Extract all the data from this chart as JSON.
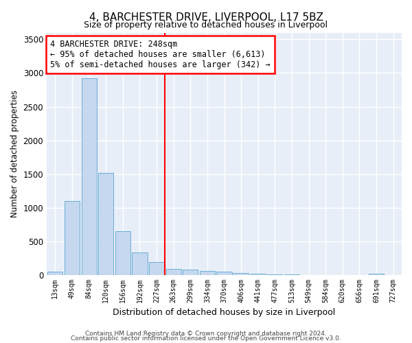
{
  "title": "4, BARCHESTER DRIVE, LIVERPOOL, L17 5BZ",
  "subtitle": "Size of property relative to detached houses in Liverpool",
  "xlabel": "Distribution of detached houses by size in Liverpool",
  "ylabel": "Number of detached properties",
  "footnote1": "Contains HM Land Registry data © Crown copyright and database right 2024.",
  "footnote2": "Contains public sector information licensed under the Open Government Licence v3.0.",
  "bar_labels": [
    "13sqm",
    "49sqm",
    "84sqm",
    "120sqm",
    "156sqm",
    "192sqm",
    "227sqm",
    "263sqm",
    "299sqm",
    "334sqm",
    "370sqm",
    "406sqm",
    "441sqm",
    "477sqm",
    "513sqm",
    "549sqm",
    "584sqm",
    "620sqm",
    "656sqm",
    "691sqm",
    "727sqm"
  ],
  "bar_values": [
    50,
    1100,
    2920,
    1520,
    650,
    340,
    190,
    95,
    85,
    60,
    50,
    30,
    20,
    10,
    8,
    5,
    5,
    5,
    3,
    20,
    3
  ],
  "bar_color": "#c5d8ef",
  "bar_edge_color": "#6baed6",
  "background_color": "#e8eef8",
  "grid_color": "#ffffff",
  "vline_color": "red",
  "annotation_line1": "4 BARCHESTER DRIVE: 248sqm",
  "annotation_line2": "← 95% of detached houses are smaller (6,613)",
  "annotation_line3": "5% of semi-detached houses are larger (342) →",
  "ylim": [
    0,
    3600
  ],
  "yticks": [
    0,
    500,
    1000,
    1500,
    2000,
    2500,
    3000,
    3500
  ]
}
